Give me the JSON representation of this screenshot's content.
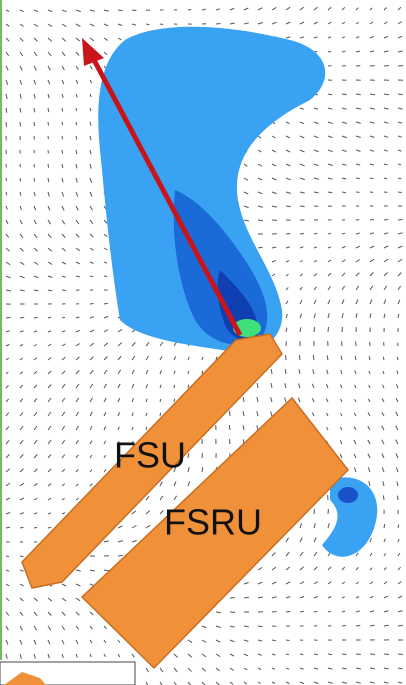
{
  "labels": {
    "fsu": "FSU",
    "fsru": "FSRU"
  }
}
